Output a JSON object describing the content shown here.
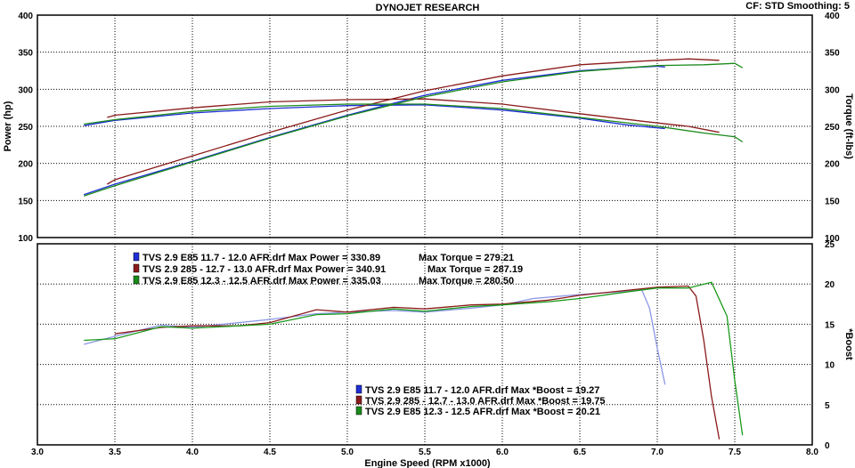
{
  "chart_data": {
    "type": "line",
    "title": "DYNOJET RESEARCH",
    "header_right": "CF: STD  Smoothing: 5",
    "xlabel": "Engine Speed (RPM x1000)",
    "x_ticks": [
      "3.0",
      "3.5",
      "4.0",
      "4.5",
      "5.0",
      "5.5",
      "6.0",
      "6.5",
      "7.0",
      "7.5",
      "8.0"
    ],
    "xlim": [
      3.0,
      8.0
    ],
    "grid": true,
    "top_panel": {
      "ylabel_left": "Power (hp)",
      "ylabel_right": "Torque (ft-lbs)",
      "ylim": [
        100,
        400
      ],
      "y_ticks": [
        "100",
        "150",
        "200",
        "250",
        "300",
        "350",
        "400"
      ]
    },
    "bottom_panel": {
      "ylabel_right": "*Boost",
      "ylim": [
        0,
        25
      ],
      "y_ticks": [
        "0",
        "5",
        "10",
        "15",
        "20",
        "25"
      ]
    },
    "series": [
      {
        "name": "TVS 2.9 E85 11.7 - 12.0 AFR.drf",
        "color": "#1f2fd6",
        "boost_color": "#8a96e6",
        "power": {
          "x": [
            3.3,
            3.5,
            4.0,
            4.5,
            5.0,
            5.5,
            6.0,
            6.5,
            6.8,
            7.0,
            7.05
          ],
          "y": [
            158,
            172,
            203,
            235,
            265,
            292,
            312,
            325,
            329,
            331,
            330
          ]
        },
        "torque": {
          "x": [
            3.3,
            3.5,
            4.0,
            4.5,
            5.0,
            5.5,
            6.0,
            6.5,
            6.8,
            7.0,
            7.05
          ],
          "y": [
            251,
            258,
            268,
            274,
            278,
            279,
            272,
            261,
            252,
            248,
            247
          ]
        },
        "boost": {
          "x": [
            3.3,
            3.5,
            3.8,
            4.0,
            4.3,
            4.5,
            4.8,
            5.0,
            5.3,
            5.5,
            5.8,
            6.0,
            6.2,
            6.5,
            6.8,
            6.9,
            6.95,
            7.0,
            7.05
          ],
          "y": [
            12.5,
            13.5,
            14.9,
            14.6,
            15.2,
            15.6,
            16.3,
            16.5,
            16.7,
            16.5,
            17.0,
            17.4,
            18.2,
            18.7,
            19.1,
            19.27,
            17,
            12,
            7.5
          ]
        },
        "legend_power": "TVS 2.9 E85 11.7 - 12.0 AFR.drf Max Power = 330.89",
        "legend_torque": "Max Torque = 279.21",
        "legend_boost": "TVS 2.9 E85 11.7 - 12.0 AFR.drf Max *Boost = 19.27"
      },
      {
        "name": "TVS 2.9 285 - 12.7 - 13.0 AFR.drf",
        "color": "#8b1a1a",
        "boost_color": "#8b1a1a",
        "power": {
          "x": [
            3.45,
            3.5,
            4.0,
            4.5,
            5.0,
            5.5,
            6.0,
            6.5,
            6.9,
            7.2,
            7.4
          ],
          "y": [
            172,
            178,
            210,
            242,
            272,
            298,
            318,
            333,
            338,
            341,
            339
          ]
        },
        "torque": {
          "x": [
            3.45,
            3.5,
            4.0,
            4.5,
            5.0,
            5.5,
            6.0,
            6.5,
            6.9,
            7.2,
            7.4
          ],
          "y": [
            262,
            265,
            275,
            283,
            286,
            287,
            280,
            267,
            257,
            250,
            242
          ]
        },
        "boost": {
          "x": [
            3.5,
            3.8,
            4.0,
            4.3,
            4.5,
            4.8,
            5.0,
            5.3,
            5.5,
            5.8,
            6.0,
            6.3,
            6.5,
            6.8,
            7.0,
            7.2,
            7.25,
            7.3,
            7.35,
            7.4
          ],
          "y": [
            13.8,
            14.6,
            14.8,
            14.8,
            15.2,
            16.8,
            16.5,
            17.1,
            16.9,
            17.4,
            17.5,
            18.0,
            18.6,
            19.2,
            19.6,
            19.75,
            18.5,
            13,
            6,
            0.7
          ]
        },
        "legend_power": "TVS 2.9 285 - 12.7 - 13.0 AFR.drf Max Power = 340.91",
        "legend_torque": "Max Torque = 287.19",
        "legend_boost": "TVS 2.9 285 - 12.7 - 13.0 AFR.drf Max *Boost = 19.75"
      },
      {
        "name": "TVS 2.9 E85 12.3 - 12.5 AFR.drf",
        "color": "#1a8a1a",
        "boost_color": "#1a9a1a",
        "power": {
          "x": [
            3.3,
            3.5,
            4.0,
            4.5,
            5.0,
            5.5,
            6.0,
            6.5,
            7.0,
            7.3,
            7.5,
            7.55
          ],
          "y": [
            156,
            170,
            202,
            234,
            264,
            290,
            310,
            324,
            332,
            333,
            335,
            329
          ]
        },
        "torque": {
          "x": [
            3.3,
            3.5,
            4.0,
            4.5,
            5.0,
            5.5,
            6.0,
            6.5,
            7.0,
            7.3,
            7.5,
            7.55
          ],
          "y": [
            253,
            259,
            270,
            277,
            280,
            280,
            274,
            262,
            250,
            241,
            236,
            229
          ]
        },
        "boost": {
          "x": [
            3.3,
            3.5,
            3.8,
            4.0,
            4.3,
            4.5,
            4.8,
            5.0,
            5.3,
            5.5,
            5.8,
            6.0,
            6.3,
            6.5,
            6.8,
            7.0,
            7.2,
            7.35,
            7.45,
            7.5,
            7.55
          ],
          "y": [
            13.0,
            13.2,
            14.7,
            14.5,
            14.8,
            15.0,
            16.2,
            16.3,
            16.9,
            16.6,
            17.2,
            17.4,
            17.8,
            18.2,
            19.0,
            19.5,
            19.5,
            20.21,
            16,
            8,
            1.2
          ]
        },
        "legend_power": "TVS 2.9 E85 12.3 - 12.5 AFR.drf Max Power = 335.03",
        "legend_torque": "Max Torque = 280.50",
        "legend_boost": "TVS 2.9 E85 12.3 - 12.5 AFR.drf Max *Boost = 20.21"
      }
    ]
  }
}
